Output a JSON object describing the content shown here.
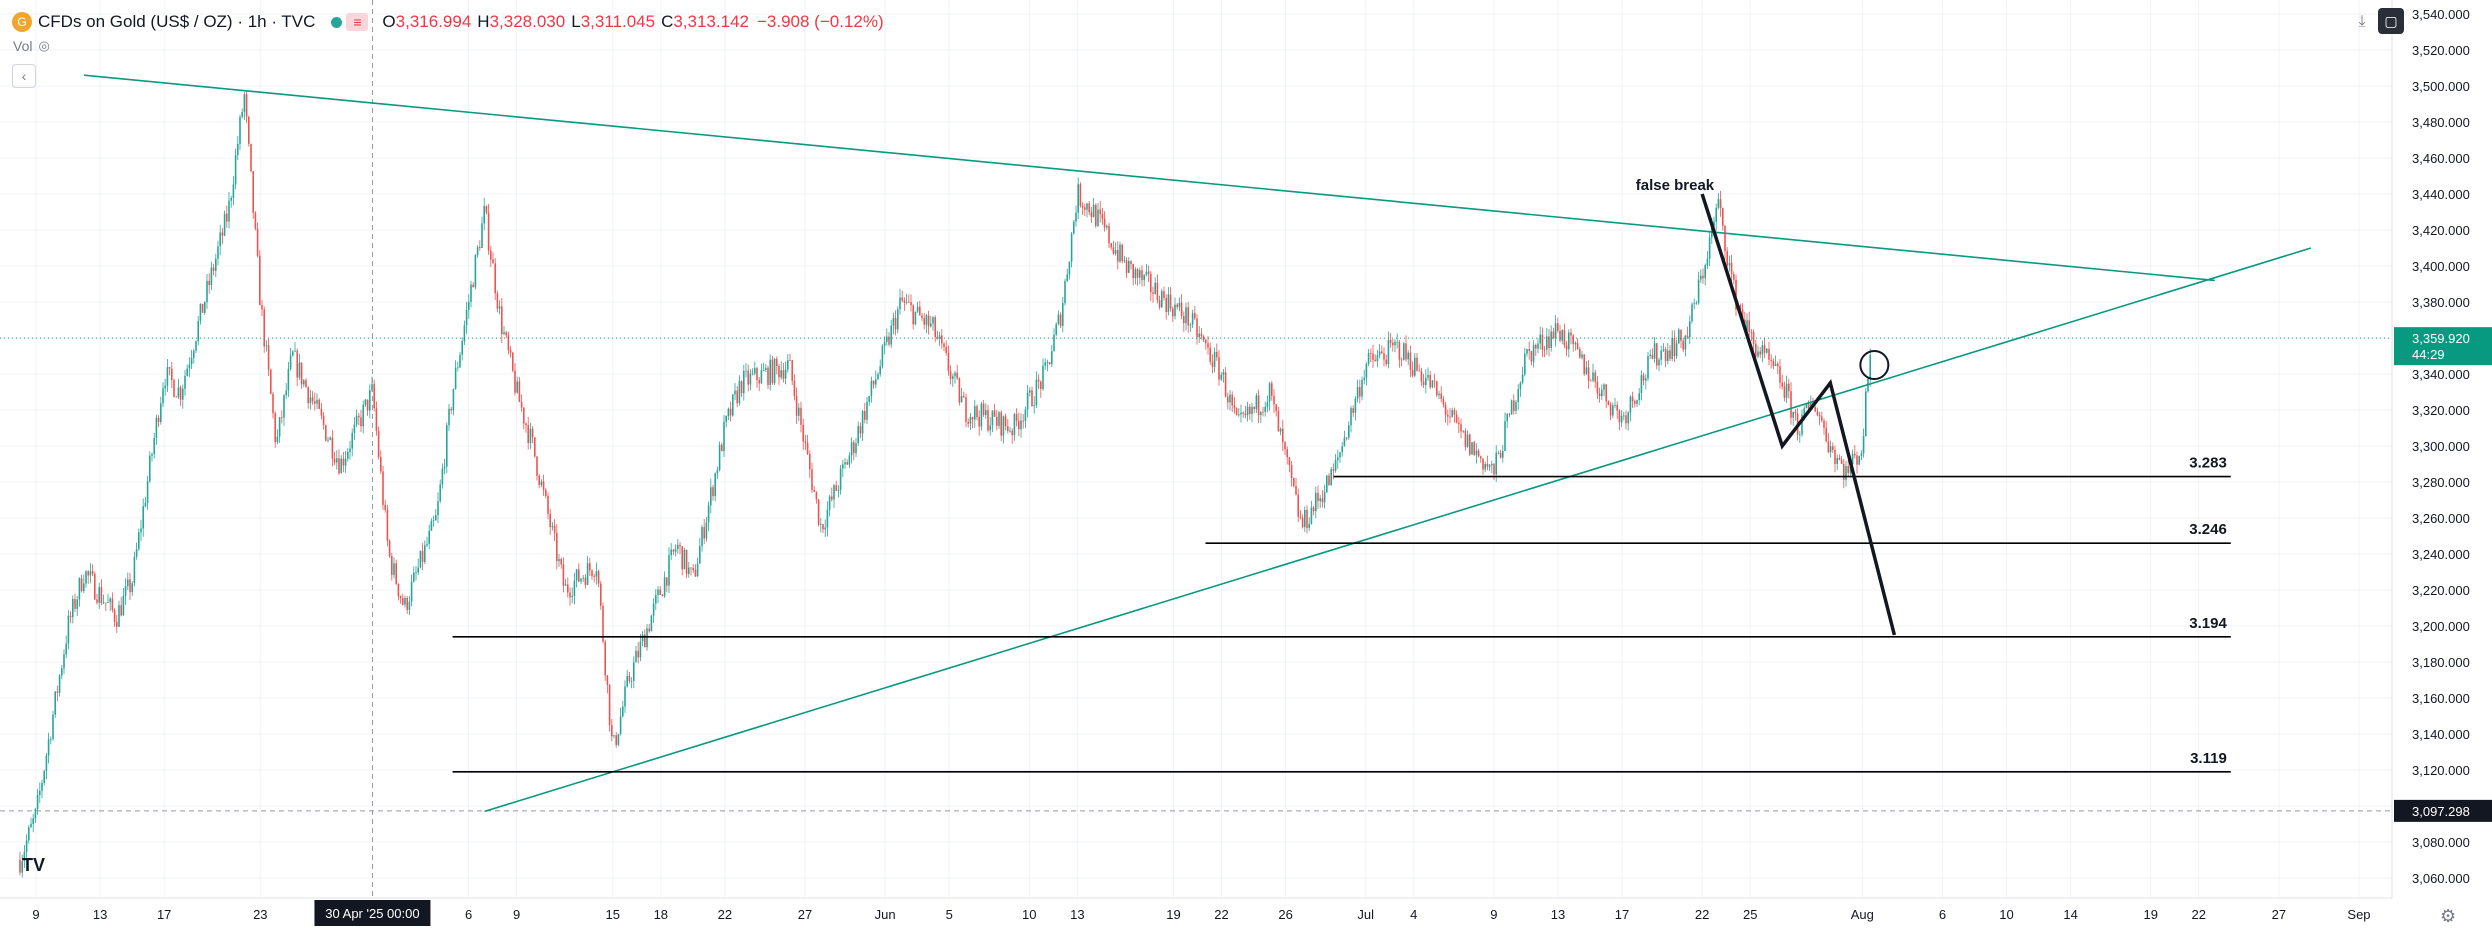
{
  "header": {
    "symbol": "CFDs on Gold (US$ / OZ) · 1h · TVC",
    "open_label": "O",
    "open": "3,316.994",
    "high_label": "H",
    "high": "3,328.030",
    "low_label": "L",
    "low": "3,311.045",
    "close_label": "C",
    "close": "3,313.142",
    "change": "−3.908 (−0.12%)"
  },
  "vol_label": "Vol",
  "annotation_false_break": "false break",
  "crosshair_date_label": "30 Apr '25  00:00",
  "price_badge": {
    "price": "3,359.920",
    "countdown": "44:29"
  },
  "crosshair_price_label": "3,097.298",
  "colors": {
    "up": "#26a69a",
    "down": "#ef5350",
    "trendline": "#089981",
    "price_badge": "#089981",
    "level_line": "#000000",
    "background": "#ffffff"
  },
  "icons": [
    "gold-logo-icon",
    "eye-hidden-icon",
    "collapse-icon",
    "download-icon",
    "screenshot-icon",
    "tradingview-logo-icon",
    "settings-gear-icon"
  ],
  "chart_data": {
    "type": "candlestick",
    "timeframe": "1h",
    "ylim": [
      3040,
      3560
    ],
    "y_ticks": [
      3060,
      3080,
      3100,
      3120,
      3140,
      3160,
      3180,
      3200,
      3220,
      3240,
      3260,
      3280,
      3300,
      3320,
      3340,
      3360,
      3380,
      3400,
      3420,
      3440,
      3460,
      3480,
      3500,
      3520,
      3540
    ],
    "y_tick_labels": [
      "3,060.000",
      "3,080.000",
      "3,100.000",
      "3,120.000",
      "3,140.000",
      "3,160.000",
      "3,180.000",
      "3,200.000",
      "3,220.000",
      "3,240.000",
      "3,260.000",
      "3,280.000",
      "3,300.000",
      "3,320.000",
      "3,340.000",
      "3,360.000",
      "3,380.000",
      "3,400.000",
      "3,420.000",
      "3,440.000",
      "3,460.000",
      "3,480.000",
      "3,500.000",
      "3,520.000",
      "3,540.000"
    ],
    "x_ticks": [
      {
        "date": "2025-04-09",
        "label": "9"
      },
      {
        "date": "2025-04-13",
        "label": "13"
      },
      {
        "date": "2025-04-17",
        "label": "17"
      },
      {
        "date": "2025-04-23",
        "label": "23"
      },
      {
        "date": "2025-05-06",
        "label": "6"
      },
      {
        "date": "2025-05-09",
        "label": "9"
      },
      {
        "date": "2025-05-15",
        "label": "15"
      },
      {
        "date": "2025-05-18",
        "label": "18"
      },
      {
        "date": "2025-05-22",
        "label": "22"
      },
      {
        "date": "2025-05-27",
        "label": "27"
      },
      {
        "date": "2025-06-01",
        "label": "Jun"
      },
      {
        "date": "2025-06-05",
        "label": "5"
      },
      {
        "date": "2025-06-10",
        "label": "10"
      },
      {
        "date": "2025-06-13",
        "label": "13"
      },
      {
        "date": "2025-06-19",
        "label": "19"
      },
      {
        "date": "2025-06-22",
        "label": "22"
      },
      {
        "date": "2025-06-26",
        "label": "26"
      },
      {
        "date": "2025-07-01",
        "label": "Jul"
      },
      {
        "date": "2025-07-04",
        "label": "4"
      },
      {
        "date": "2025-07-09",
        "label": "9"
      },
      {
        "date": "2025-07-13",
        "label": "13"
      },
      {
        "date": "2025-07-17",
        "label": "17"
      },
      {
        "date": "2025-07-22",
        "label": "22"
      },
      {
        "date": "2025-07-25",
        "label": "25"
      },
      {
        "date": "2025-08-01",
        "label": "Aug"
      },
      {
        "date": "2025-08-06",
        "label": "6"
      },
      {
        "date": "2025-08-10",
        "label": "10"
      },
      {
        "date": "2025-08-14",
        "label": "14"
      },
      {
        "date": "2025-08-19",
        "label": "19"
      },
      {
        "date": "2025-08-22",
        "label": "22"
      },
      {
        "date": "2025-08-27",
        "label": "27"
      },
      {
        "date": "2025-09-01",
        "label": "Sep"
      }
    ],
    "price_path": [
      {
        "date": "2025-04-08",
        "price": 3070
      },
      {
        "date": "2025-04-09",
        "price": 3095
      },
      {
        "date": "2025-04-11",
        "price": 3200
      },
      {
        "date": "2025-04-12",
        "price": 3230
      },
      {
        "date": "2025-04-14",
        "price": 3205
      },
      {
        "date": "2025-04-15",
        "price": 3225
      },
      {
        "date": "2025-04-17",
        "price": 3340
      },
      {
        "date": "2025-04-18",
        "price": 3330
      },
      {
        "date": "2025-04-21",
        "price": 3430
      },
      {
        "date": "2025-04-22",
        "price": 3495
      },
      {
        "date": "2025-04-23",
        "price": 3380
      },
      {
        "date": "2025-04-24",
        "price": 3300
      },
      {
        "date": "2025-04-25",
        "price": 3350
      },
      {
        "date": "2025-04-28",
        "price": 3290
      },
      {
        "date": "2025-04-30",
        "price": 3330
      },
      {
        "date": "2025-05-01",
        "price": 3240
      },
      {
        "date": "2025-05-02",
        "price": 3210
      },
      {
        "date": "2025-05-04",
        "price": 3260
      },
      {
        "date": "2025-05-05",
        "price": 3330
      },
      {
        "date": "2025-05-07",
        "price": 3430
      },
      {
        "date": "2025-05-08",
        "price": 3370
      },
      {
        "date": "2025-05-09",
        "price": 3330
      },
      {
        "date": "2025-05-10",
        "price": 3300
      },
      {
        "date": "2025-05-12",
        "price": 3220
      },
      {
        "date": "2025-05-14",
        "price": 3235
      },
      {
        "date": "2025-05-15",
        "price": 3130
      },
      {
        "date": "2025-05-16",
        "price": 3170
      },
      {
        "date": "2025-05-18",
        "price": 3220
      },
      {
        "date": "2025-05-19",
        "price": 3245
      },
      {
        "date": "2025-05-20",
        "price": 3225
      },
      {
        "date": "2025-05-22",
        "price": 3310
      },
      {
        "date": "2025-05-23",
        "price": 3335
      },
      {
        "date": "2025-05-26",
        "price": 3345
      },
      {
        "date": "2025-05-28",
        "price": 3255
      },
      {
        "date": "2025-05-30",
        "price": 3300
      },
      {
        "date": "2025-06-02",
        "price": 3380
      },
      {
        "date": "2025-06-04",
        "price": 3365
      },
      {
        "date": "2025-06-06",
        "price": 3320
      },
      {
        "date": "2025-06-09",
        "price": 3310
      },
      {
        "date": "2025-06-11",
        "price": 3340
      },
      {
        "date": "2025-06-12",
        "price": 3375
      },
      {
        "date": "2025-06-13",
        "price": 3440
      },
      {
        "date": "2025-06-14",
        "price": 3430
      },
      {
        "date": "2025-06-16",
        "price": 3400
      },
      {
        "date": "2025-06-18",
        "price": 3385
      },
      {
        "date": "2025-06-20",
        "price": 3370
      },
      {
        "date": "2025-06-22",
        "price": 3340
      },
      {
        "date": "2025-06-23",
        "price": 3310
      },
      {
        "date": "2025-06-25",
        "price": 3330
      },
      {
        "date": "2025-06-27",
        "price": 3255
      },
      {
        "date": "2025-06-29",
        "price": 3285
      },
      {
        "date": "2025-07-01",
        "price": 3345
      },
      {
        "date": "2025-07-03",
        "price": 3355
      },
      {
        "date": "2025-07-05",
        "price": 3335
      },
      {
        "date": "2025-07-07",
        "price": 3305
      },
      {
        "date": "2025-07-09",
        "price": 3285
      },
      {
        "date": "2025-07-11",
        "price": 3350
      },
      {
        "date": "2025-07-13",
        "price": 3365
      },
      {
        "date": "2025-07-15",
        "price": 3340
      },
      {
        "date": "2025-07-17",
        "price": 3315
      },
      {
        "date": "2025-07-19",
        "price": 3350
      },
      {
        "date": "2025-07-21",
        "price": 3360
      },
      {
        "date": "2025-07-22",
        "price": 3395
      },
      {
        "date": "2025-07-23",
        "price": 3435
      },
      {
        "date": "2025-07-24",
        "price": 3385
      },
      {
        "date": "2025-07-25",
        "price": 3360
      },
      {
        "date": "2025-07-27",
        "price": 3335
      },
      {
        "date": "2025-07-28",
        "price": 3310
      },
      {
        "date": "2025-07-29",
        "price": 3325
      },
      {
        "date": "2025-07-30",
        "price": 3300
      },
      {
        "date": "2025-07-31",
        "price": 3285
      },
      {
        "date": "2025-08-01",
        "price": 3300
      },
      {
        "date": "2025-08-01",
        "price": 3355
      }
    ],
    "drawings": {
      "trendline_upper": {
        "from": {
          "date": "2025-04-12",
          "price": 3506
        },
        "to": {
          "date": "2025-08-23",
          "price": 3392
        }
      },
      "trendline_lower": {
        "from": {
          "date": "2025-05-07",
          "price": 3097
        },
        "to": {
          "date": "2025-08-29",
          "price": 3410
        }
      },
      "horizontal_levels": [
        {
          "label": "3.283",
          "price": 3283,
          "from": "2025-06-29",
          "to": "2025-08-24"
        },
        {
          "label": "3.246",
          "price": 3246,
          "from": "2025-06-21",
          "to": "2025-08-24"
        },
        {
          "label": "3.194",
          "price": 3194,
          "from": "2025-05-05",
          "to": "2025-08-24"
        },
        {
          "label": "3.119",
          "price": 3119,
          "from": "2025-05-05",
          "to": "2025-08-24"
        }
      ],
      "projection_path": [
        {
          "date": "2025-07-22",
          "price": 3440
        },
        {
          "date": "2025-07-27",
          "price": 3300
        },
        {
          "date": "2025-07-30",
          "price": 3335
        },
        {
          "date": "2025-08-03",
          "price": 3195
        }
      ],
      "circle_marker": {
        "date": "2025-08-01",
        "price": 3345
      },
      "last_price": 3359.92,
      "crosshair": {
        "date": "2025-04-30",
        "price": 3097.298
      }
    }
  }
}
